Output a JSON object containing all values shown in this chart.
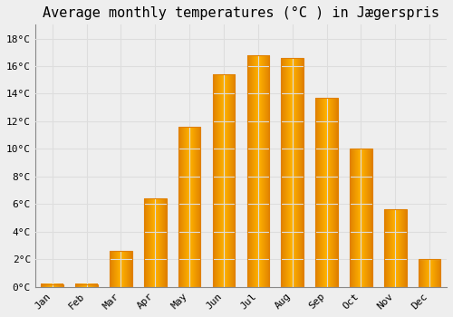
{
  "title": "Average monthly temperatures (°C ) in Jægerspris",
  "months": [
    "Jan",
    "Feb",
    "Mar",
    "Apr",
    "May",
    "Jun",
    "Jul",
    "Aug",
    "Sep",
    "Oct",
    "Nov",
    "Dec"
  ],
  "values": [
    0.2,
    0.2,
    2.6,
    6.4,
    11.6,
    15.4,
    16.8,
    16.6,
    13.7,
    10.0,
    5.6,
    2.0
  ],
  "bar_color_center": "#FFB300",
  "bar_color_edge": "#E08000",
  "ylim": [
    0,
    19
  ],
  "ytick_values": [
    0,
    2,
    4,
    6,
    8,
    10,
    12,
    14,
    16,
    18
  ],
  "background_color": "#eeeeee",
  "grid_color": "#dddddd",
  "title_fontsize": 11,
  "tick_fontsize": 8,
  "font_family": "monospace"
}
